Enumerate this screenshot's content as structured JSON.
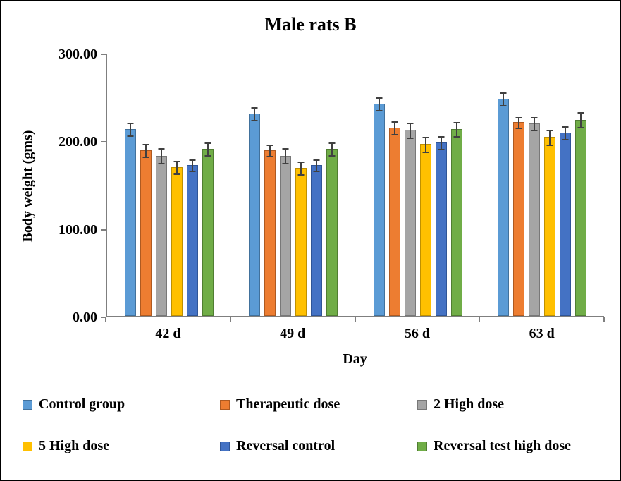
{
  "chart_data": {
    "type": "bar",
    "title": "Male rats B",
    "xlabel": "Day",
    "ylabel": "Body weight (gms)",
    "ylim": [
      0,
      300
    ],
    "y_ticks": [
      {
        "label": "0.00",
        "value": 0
      },
      {
        "label": "100.00",
        "value": 100
      },
      {
        "label": "200.00",
        "value": 200
      },
      {
        "label": "300.00",
        "value": 300
      }
    ],
    "grid": false,
    "legend_position": "bottom",
    "error_bar_color": "#404040",
    "axis_color": "#7f7f7f",
    "categories": [
      "42 d",
      "49 d",
      "56 d",
      "63 d"
    ],
    "series": [
      {
        "name": "Control group",
        "color": "#5B9BD5",
        "border_color": "#41719C",
        "values": [
          213,
          231,
          242,
          248
        ],
        "errors": [
          8,
          8,
          8,
          8
        ]
      },
      {
        "name": "Therapeutic dose",
        "color": "#ED7D31",
        "border_color": "#AE5A21",
        "values": [
          189,
          189,
          215,
          221
        ],
        "errors": [
          8,
          7,
          8,
          7
        ]
      },
      {
        "name": "2 High dose",
        "color": "#A5A5A5",
        "border_color": "#787878",
        "values": [
          183,
          183,
          212,
          220
        ],
        "errors": [
          9,
          9,
          9,
          8
        ]
      },
      {
        "name": "5 High dose",
        "color": "#FFC000",
        "border_color": "#BF9000",
        "values": [
          170,
          169,
          196,
          204
        ],
        "errors": [
          8,
          8,
          9,
          9
        ]
      },
      {
        "name": "Reversal control",
        "color": "#4472C4",
        "border_color": "#2F5597",
        "values": [
          172,
          172,
          198,
          209
        ],
        "errors": [
          7,
          7,
          8,
          8
        ]
      },
      {
        "name": "Reversal test high dose",
        "color": "#70AD47",
        "border_color": "#507E32",
        "values": [
          191,
          191,
          213,
          224
        ],
        "errors": [
          8,
          8,
          9,
          9
        ]
      }
    ]
  }
}
